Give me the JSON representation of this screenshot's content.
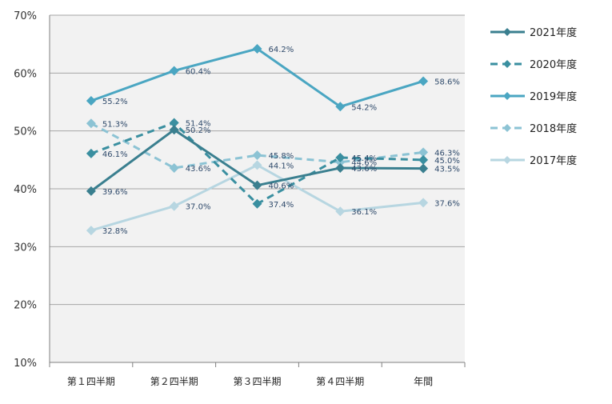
{
  "chart_data": {
    "type": "line",
    "categories": [
      "第１四半期",
      "第２四半期",
      "第３四半期",
      "第４四半期",
      "年間"
    ],
    "ylim": [
      10,
      70
    ],
    "yticks": [
      10,
      20,
      30,
      40,
      50,
      60,
      70
    ],
    "ytick_suffix": "%",
    "grid": true,
    "legend_position": "right",
    "series": [
      {
        "name": "2021年度",
        "values": [
          39.6,
          50.2,
          40.6,
          43.6,
          43.5
        ],
        "labels": [
          "39.6%",
          "50.2%",
          "40.6%",
          "43.6%",
          "43.5%"
        ],
        "color": "#3a7f8f",
        "dashed": false
      },
      {
        "name": "2020年度",
        "values": [
          46.1,
          51.4,
          37.4,
          45.4,
          45.0
        ],
        "labels": [
          "46.1%",
          "51.4%",
          "37.4%",
          "45.4%",
          "45.0%"
        ],
        "color": "#3a8fa0",
        "dashed": true
      },
      {
        "name": "2019年度",
        "values": [
          55.2,
          60.4,
          64.2,
          54.2,
          58.6
        ],
        "labels": [
          "55.2%",
          "60.4%",
          "64.2%",
          "54.2%",
          "58.6%"
        ],
        "color": "#4aa6c2",
        "dashed": false
      },
      {
        "name": "2018年度",
        "values": [
          51.3,
          43.6,
          45.8,
          44.6,
          46.3
        ],
        "labels": [
          "51.3%",
          "43.6%",
          "45.8%",
          "44.6%",
          "46.3%"
        ],
        "color": "#8cc3d4",
        "dashed": true
      },
      {
        "name": "2017年度",
        "values": [
          32.8,
          37.0,
          44.1,
          36.1,
          37.6
        ],
        "labels": [
          "32.8%",
          "37.0%",
          "44.1%",
          "36.1%",
          "37.6%"
        ],
        "color": "#b7d6e1",
        "dashed": false
      }
    ]
  }
}
